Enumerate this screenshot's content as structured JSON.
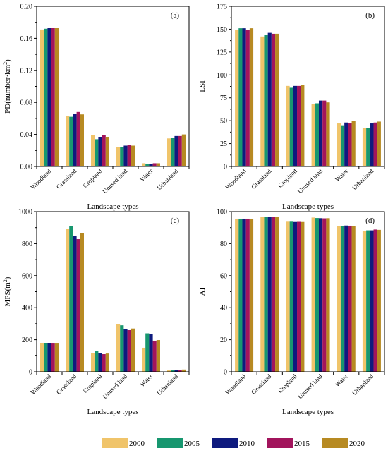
{
  "legend": {
    "years": [
      "2000",
      "2005",
      "2010",
      "2015",
      "2020"
    ],
    "colors": [
      "#F0C46A",
      "#17976F",
      "#0E1A7E",
      "#A2145C",
      "#B78A22"
    ]
  },
  "chart_data": [
    {
      "type": "bar",
      "panel_label": "(a)",
      "xlabel": "Landscape types",
      "ylabel": "PD(number·km",
      "ylabel_sup": "2",
      "ylabel_close": ")",
      "categories": [
        "Woodland",
        "Grassland",
        "Cropland",
        "Unused land",
        "Water",
        "Urbanland"
      ],
      "ylim": [
        0,
        0.2
      ],
      "yticks": [
        0.0,
        0.04,
        0.08,
        0.12,
        0.16,
        0.2
      ],
      "ytick_labels": [
        "0.00",
        "0.04",
        "0.08",
        "0.12",
        "0.16",
        "0.20"
      ],
      "series": [
        {
          "name": "2000",
          "values": [
            0.171,
            0.063,
            0.039,
            0.024,
            0.004,
            0.035
          ]
        },
        {
          "name": "2005",
          "values": [
            0.172,
            0.062,
            0.034,
            0.024,
            0.003,
            0.036
          ]
        },
        {
          "name": "2010",
          "values": [
            0.173,
            0.066,
            0.037,
            0.026,
            0.003,
            0.038
          ]
        },
        {
          "name": "2015",
          "values": [
            0.173,
            0.068,
            0.039,
            0.027,
            0.004,
            0.038
          ]
        },
        {
          "name": "2020",
          "values": [
            0.173,
            0.065,
            0.037,
            0.026,
            0.004,
            0.04
          ]
        }
      ]
    },
    {
      "type": "bar",
      "panel_label": "(b)",
      "xlabel": "Landscape types",
      "ylabel": "LSI",
      "ylabel_sup": "",
      "ylabel_close": "",
      "categories": [
        "Woodland",
        "Grassland",
        "Cropland",
        "Unused land",
        "Water",
        "Urbanland"
      ],
      "ylim": [
        0,
        175
      ],
      "yticks": [
        0,
        25,
        50,
        75,
        100,
        125,
        150,
        175
      ],
      "ytick_labels": [
        "0",
        "25",
        "50",
        "75",
        "100",
        "125",
        "150",
        "175"
      ],
      "series": [
        {
          "name": "2000",
          "values": [
            149,
            142,
            88,
            68,
            47,
            42
          ]
        },
        {
          "name": "2005",
          "values": [
            151,
            144,
            86,
            69,
            45,
            42
          ]
        },
        {
          "name": "2010",
          "values": [
            151,
            146,
            88,
            72,
            48,
            47
          ]
        },
        {
          "name": "2015",
          "values": [
            149,
            145,
            88,
            72,
            47,
            48
          ]
        },
        {
          "name": "2020",
          "values": [
            151,
            145,
            89,
            70,
            50,
            49
          ]
        }
      ]
    },
    {
      "type": "bar",
      "panel_label": "(c)",
      "xlabel": "Landscape types",
      "ylabel": "MPS(m",
      "ylabel_sup": "2",
      "ylabel_close": ")",
      "categories": [
        "Woodland",
        "Grassland",
        "Cropland",
        "Unused land",
        "Water",
        "Urbanland"
      ],
      "ylim": [
        0,
        1000
      ],
      "yticks": [
        0,
        200,
        400,
        600,
        800,
        1000
      ],
      "ytick_labels": [
        "0",
        "200",
        "400",
        "600",
        "800",
        "1000"
      ],
      "series": [
        {
          "name": "2000",
          "values": [
            178,
            890,
            118,
            298,
            150,
            10
          ]
        },
        {
          "name": "2005",
          "values": [
            178,
            908,
            130,
            290,
            240,
            10
          ]
        },
        {
          "name": "2010",
          "values": [
            178,
            850,
            118,
            265,
            235,
            12
          ]
        },
        {
          "name": "2015",
          "values": [
            176,
            828,
            110,
            260,
            194,
            12
          ]
        },
        {
          "name": "2020",
          "values": [
            176,
            866,
            114,
            270,
            198,
            14
          ]
        }
      ]
    },
    {
      "type": "bar",
      "panel_label": "(d)",
      "xlabel": "Landscape types",
      "ylabel": "AI",
      "ylabel_sup": "",
      "ylabel_close": "",
      "categories": [
        "Woodland",
        "Grassland",
        "Cropland",
        "Unused land",
        "Water",
        "Urbanland"
      ],
      "ylim": [
        0,
        100
      ],
      "yticks": [
        0,
        20,
        40,
        60,
        80,
        100
      ],
      "ytick_labels": [
        "0",
        "20",
        "40",
        "60",
        "80",
        "100"
      ],
      "series": [
        {
          "name": "2000",
          "values": [
            95.6,
            96.6,
            93.7,
            96.3,
            90.8,
            88.1
          ]
        },
        {
          "name": "2005",
          "values": [
            95.6,
            96.6,
            93.7,
            96.0,
            91.0,
            88.3
          ]
        },
        {
          "name": "2010",
          "values": [
            95.6,
            96.7,
            93.5,
            95.9,
            91.3,
            88.3
          ]
        },
        {
          "name": "2015",
          "values": [
            95.6,
            96.6,
            93.6,
            95.8,
            91.2,
            88.8
          ]
        },
        {
          "name": "2020",
          "values": [
            95.6,
            96.6,
            93.5,
            95.9,
            90.8,
            88.6
          ]
        }
      ]
    }
  ]
}
